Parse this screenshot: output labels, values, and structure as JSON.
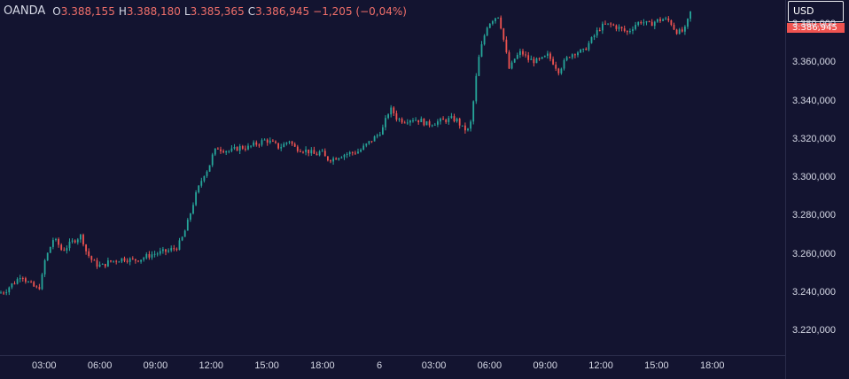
{
  "legend": {
    "symbol": "OANDA",
    "open_key": "O",
    "open": "3.388,155",
    "high_key": "H",
    "high": "3.388,180",
    "low_key": "L",
    "low": "3.385,365",
    "close_key": "C",
    "close": "3.386,945",
    "change": "−1,205 (−0,04%)"
  },
  "currency_selector": "USD",
  "last_price_label": "3.386,945",
  "colors": {
    "background": "#131430",
    "up": "#26a69a",
    "down": "#ef5350",
    "text": "#d6d9e6"
  },
  "chart_data": {
    "type": "candlestick",
    "y_ticks": [
      "3.220,000",
      "3.240,000",
      "3.260,000",
      "3.280,000",
      "3.300,000",
      "3.320,000",
      "3.340,000",
      "3.360,000",
      "3.380,000"
    ],
    "y_tick_values": [
      3220000,
      3240000,
      3260000,
      3280000,
      3300000,
      3320000,
      3340000,
      3360000,
      3380000
    ],
    "x_ticks": [
      "03:00",
      "06:00",
      "09:00",
      "12:00",
      "15:00",
      "18:00",
      "6",
      "03:00",
      "06:00",
      "09:00",
      "12:00",
      "15:00",
      "18:00"
    ],
    "ylim": [
      3208000,
      3393000
    ],
    "grid": false,
    "series_path": [
      [
        0,
        3240000
      ],
      [
        6,
        3241000
      ],
      [
        12,
        3244000
      ],
      [
        18,
        3246000
      ],
      [
        24,
        3250000
      ],
      [
        30,
        3246000
      ],
      [
        36,
        3244000
      ],
      [
        42,
        3242000
      ],
      [
        46,
        3244000
      ],
      [
        50,
        3256000
      ],
      [
        55,
        3262000
      ],
      [
        60,
        3268000
      ],
      [
        65,
        3266000
      ],
      [
        70,
        3262000
      ],
      [
        75,
        3264000
      ],
      [
        80,
        3266000
      ],
      [
        85,
        3268000
      ],
      [
        92,
        3270000
      ],
      [
        97,
        3262000
      ],
      [
        102,
        3258000
      ],
      [
        108,
        3255000
      ],
      [
        115,
        3254000
      ],
      [
        122,
        3256000
      ],
      [
        130,
        3257000
      ],
      [
        140,
        3258000
      ],
      [
        150,
        3257000
      ],
      [
        160,
        3258000
      ],
      [
        170,
        3260000
      ],
      [
        180,
        3261000
      ],
      [
        190,
        3262000
      ],
      [
        200,
        3264000
      ],
      [
        205,
        3268000
      ],
      [
        210,
        3274000
      ],
      [
        215,
        3282000
      ],
      [
        220,
        3290000
      ],
      [
        225,
        3296000
      ],
      [
        230,
        3302000
      ],
      [
        235,
        3305000
      ],
      [
        240,
        3312000
      ],
      [
        245,
        3316000
      ],
      [
        250,
        3315000
      ],
      [
        260,
        3314000
      ],
      [
        270,
        3316000
      ],
      [
        280,
        3316000
      ],
      [
        290,
        3318000
      ],
      [
        300,
        3320000
      ],
      [
        308,
        3318000
      ],
      [
        315,
        3316000
      ],
      [
        322,
        3318000
      ],
      [
        326,
        3320000
      ],
      [
        332,
        3316000
      ],
      [
        340,
        3315000
      ],
      [
        348,
        3314000
      ],
      [
        356,
        3312000
      ],
      [
        362,
        3314000
      ],
      [
        368,
        3310000
      ],
      [
        375,
        3310000
      ],
      [
        385,
        3312000
      ],
      [
        395,
        3313000
      ],
      [
        405,
        3314000
      ],
      [
        415,
        3318000
      ],
      [
        425,
        3322000
      ],
      [
        432,
        3326000
      ],
      [
        438,
        3334000
      ],
      [
        442,
        3336000
      ],
      [
        448,
        3331000
      ],
      [
        455,
        3330000
      ],
      [
        465,
        3331000
      ],
      [
        475,
        3330000
      ],
      [
        482,
        3328000
      ],
      [
        490,
        3329000
      ],
      [
        500,
        3330000
      ],
      [
        510,
        3331000
      ],
      [
        516,
        3330000
      ],
      [
        522,
        3326000
      ],
      [
        528,
        3325000
      ],
      [
        532,
        3330000
      ],
      [
        536,
        3348000
      ],
      [
        540,
        3362000
      ],
      [
        545,
        3372000
      ],
      [
        550,
        3380000
      ],
      [
        556,
        3383000
      ],
      [
        562,
        3385000
      ],
      [
        566,
        3378000
      ],
      [
        570,
        3368000
      ],
      [
        575,
        3356000
      ],
      [
        580,
        3362000
      ],
      [
        588,
        3366000
      ],
      [
        596,
        3362000
      ],
      [
        605,
        3361000
      ],
      [
        612,
        3362000
      ],
      [
        618,
        3364000
      ],
      [
        625,
        3360000
      ],
      [
        630,
        3356000
      ],
      [
        636,
        3360000
      ],
      [
        642,
        3364000
      ],
      [
        650,
        3366000
      ],
      [
        658,
        3366000
      ],
      [
        664,
        3370000
      ],
      [
        670,
        3374000
      ],
      [
        676,
        3378000
      ],
      [
        682,
        3380000
      ],
      [
        690,
        3380000
      ],
      [
        700,
        3378000
      ],
      [
        708,
        3376000
      ],
      [
        716,
        3380000
      ],
      [
        724,
        3382000
      ],
      [
        732,
        3380000
      ],
      [
        740,
        3382000
      ],
      [
        748,
        3383000
      ],
      [
        756,
        3382000
      ],
      [
        762,
        3377000
      ],
      [
        768,
        3376000
      ],
      [
        774,
        3378000
      ],
      [
        778,
        3386000
      ],
      [
        782,
        3388000
      ]
    ]
  }
}
